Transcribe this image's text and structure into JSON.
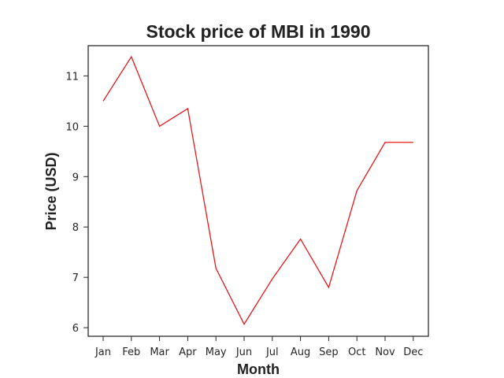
{
  "chart_data": {
    "type": "line",
    "title": "Stock price of MBI in 1990",
    "xlabel": "Month",
    "ylabel": "Price (USD)",
    "categories": [
      "Jan",
      "Feb",
      "Mar",
      "Apr",
      "May",
      "Jun",
      "Jul",
      "Aug",
      "Sep",
      "Oct",
      "Nov",
      "Dec"
    ],
    "series": [
      {
        "values": [
          10.5,
          11.38,
          10.0,
          10.35,
          7.18,
          6.07,
          6.97,
          7.76,
          6.8,
          8.72,
          9.68,
          9.68
        ],
        "color": "#e31a1c"
      }
    ],
    "yticks": [
      6,
      7,
      8,
      9,
      10,
      11
    ],
    "ylim": [
      5.83,
      11.6
    ],
    "grid": false,
    "legend": "none"
  }
}
